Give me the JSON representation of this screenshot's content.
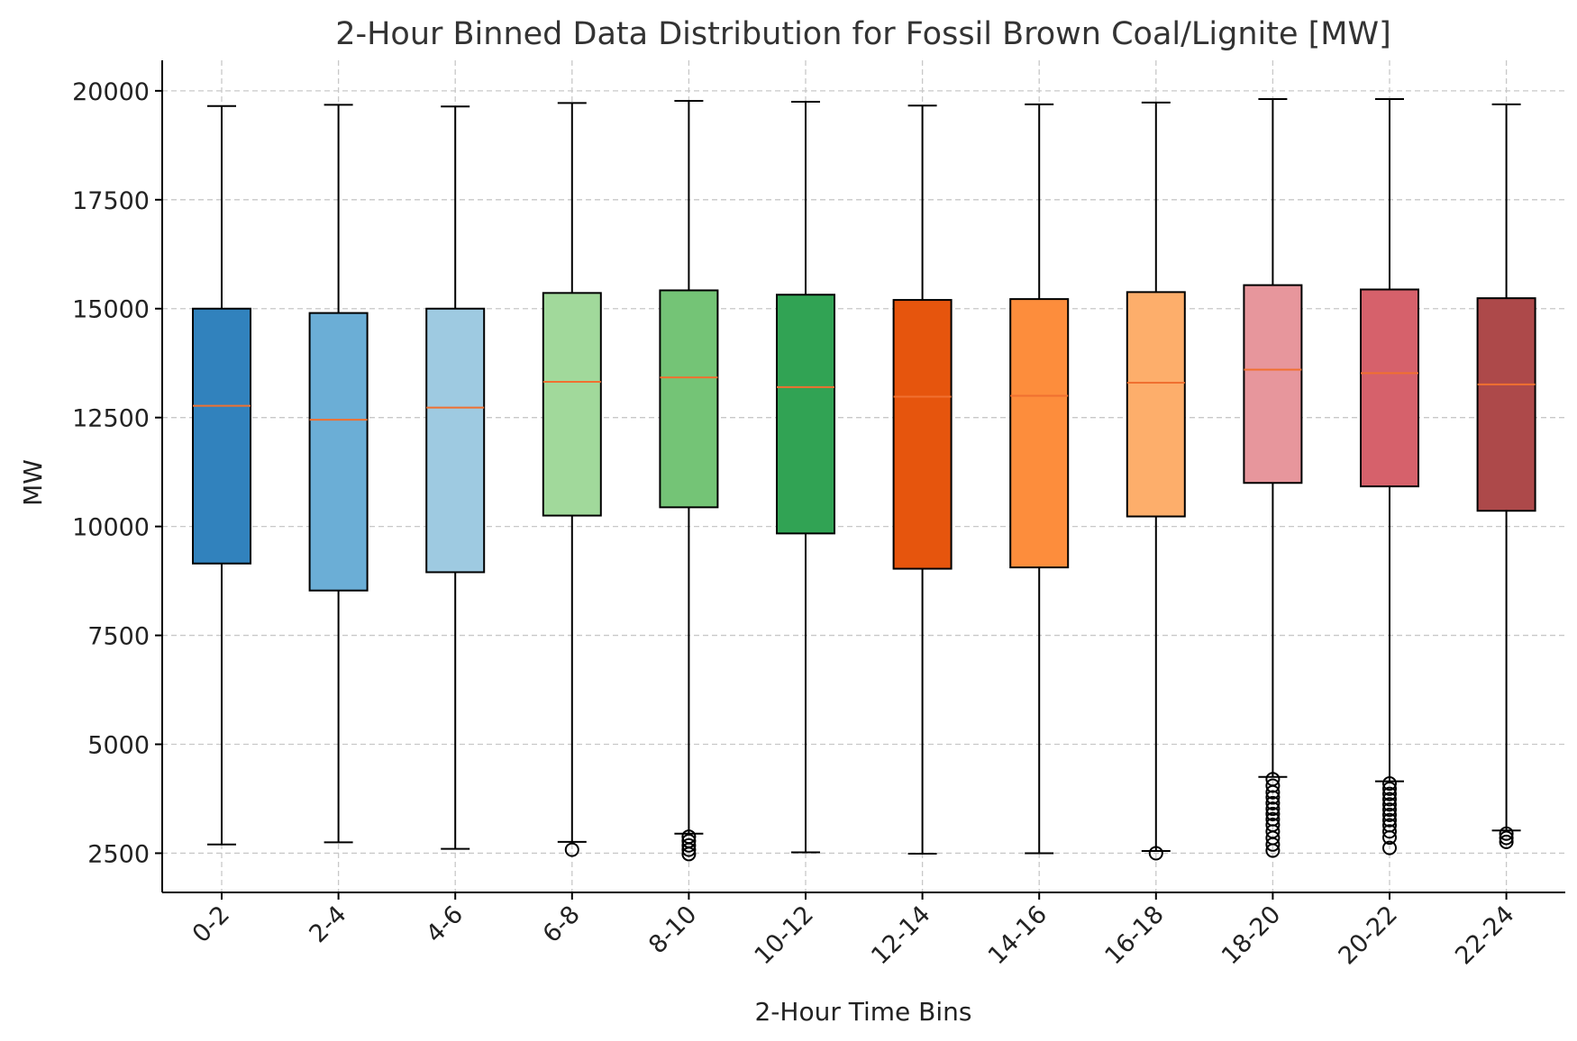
{
  "chart_data": {
    "type": "box",
    "title": "2-Hour Binned Data Distribution for Fossil Brown Coal/Lignite [MW]",
    "xlabel": "2-Hour Time Bins",
    "ylabel": "MW",
    "ylim": [
      1600,
      20700
    ],
    "yticks": [
      2500,
      5000,
      7500,
      10000,
      12500,
      15000,
      17500,
      20000
    ],
    "grid": true,
    "categories": [
      "0-2",
      "2-4",
      "4-6",
      "6-8",
      "8-10",
      "10-12",
      "12-14",
      "14-16",
      "16-18",
      "18-20",
      "20-22",
      "22-24"
    ],
    "colors": [
      "#3182bd",
      "#6baed6",
      "#9ecae1",
      "#a1d99b",
      "#74c476",
      "#31a354",
      "#e6550d",
      "#fd8d3c",
      "#fdae6b",
      "#e7969c",
      "#d6616b",
      "#ad494a"
    ],
    "median_color": "#f07030",
    "boxes": [
      {
        "whislo": 2700,
        "q1": 9150,
        "med": 12770,
        "q3": 15000,
        "whishi": 19650,
        "fliers": []
      },
      {
        "whislo": 2750,
        "q1": 8530,
        "med": 12450,
        "q3": 14900,
        "whishi": 19680,
        "fliers": []
      },
      {
        "whislo": 2600,
        "q1": 8950,
        "med": 12730,
        "q3": 15000,
        "whishi": 19640,
        "fliers": []
      },
      {
        "whislo": 2760,
        "q1": 10250,
        "med": 13320,
        "q3": 15360,
        "whishi": 19720,
        "fliers": [
          2580
        ]
      },
      {
        "whislo": 2950,
        "q1": 10440,
        "med": 13420,
        "q3": 15420,
        "whishi": 19770,
        "fliers": [
          2880,
          2780,
          2680,
          2580,
          2480
        ]
      },
      {
        "whislo": 2520,
        "q1": 9840,
        "med": 13200,
        "q3": 15320,
        "whishi": 19750,
        "fliers": []
      },
      {
        "whislo": 2490,
        "q1": 9030,
        "med": 12980,
        "q3": 15200,
        "whishi": 19660,
        "fliers": []
      },
      {
        "whislo": 2500,
        "q1": 9060,
        "med": 13000,
        "q3": 15220,
        "whishi": 19690,
        "fliers": []
      },
      {
        "whislo": 2550,
        "q1": 10230,
        "med": 13300,
        "q3": 15380,
        "whishi": 19730,
        "fliers": [
          2500
        ]
      },
      {
        "whislo": 4250,
        "q1": 11000,
        "med": 13600,
        "q3": 15540,
        "whishi": 19810,
        "fliers": [
          4200,
          4050,
          3900,
          3780,
          3650,
          3520,
          3400,
          3280,
          3150,
          3000,
          2850,
          2700,
          2560
        ]
      },
      {
        "whislo": 4150,
        "q1": 10920,
        "med": 13520,
        "q3": 15440,
        "whishi": 19810,
        "fliers": [
          4100,
          3980,
          3860,
          3740,
          3620,
          3500,
          3380,
          3260,
          3140,
          3000,
          2860,
          2620
        ]
      },
      {
        "whislo": 3020,
        "q1": 10360,
        "med": 13260,
        "q3": 15240,
        "whishi": 19690,
        "fliers": [
          2950,
          2850,
          2760
        ]
      }
    ]
  }
}
